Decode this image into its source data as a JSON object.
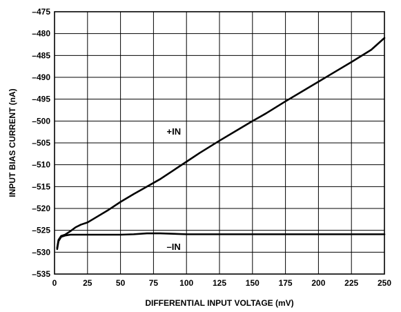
{
  "chart_data": {
    "type": "line",
    "title": "",
    "xlabel": "DIFFERENTIAL INPUT VOLTAGE (mV)",
    "ylabel": "INPUT BIAS CURRENT (nA)",
    "xlim": [
      0,
      250
    ],
    "ylim": [
      -535,
      -475
    ],
    "grid": true,
    "x_ticks": [
      0,
      25,
      50,
      75,
      100,
      125,
      150,
      175,
      200,
      225,
      250
    ],
    "x_tick_labels": [
      "0",
      "25",
      "50",
      "75",
      "100",
      "125",
      "150",
      "175",
      "200",
      "225",
      "250"
    ],
    "y_ticks": [
      -475,
      -480,
      -485,
      -490,
      -495,
      -500,
      -505,
      -510,
      -515,
      -520,
      -525,
      -530,
      -535
    ],
    "y_tick_labels": [
      "–475",
      "–480",
      "–485",
      "–490",
      "–495",
      "–500",
      "–505",
      "–510",
      "–515",
      "–520",
      "–525",
      "–530",
      "–535"
    ],
    "series": [
      {
        "name": "+IN",
        "x": [
          2,
          3,
          5,
          8,
          12,
          16,
          20,
          25,
          30,
          40,
          50,
          60,
          70,
          80,
          90,
          100,
          110,
          125,
          140,
          150,
          160,
          175,
          190,
          200,
          210,
          225,
          240,
          250
        ],
        "y": [
          -529,
          -527.2,
          -526.3,
          -526,
          -525.2,
          -524.3,
          -523.7,
          -523.2,
          -522.3,
          -520.5,
          -518.5,
          -516.7,
          -515,
          -513.3,
          -511.3,
          -509.3,
          -507.3,
          -504.5,
          -501.8,
          -500,
          -498.3,
          -495.5,
          -492.8,
          -491,
          -489.2,
          -486.5,
          -483.7,
          -481
        ]
      },
      {
        "name": "–IN",
        "x": [
          2,
          3,
          5,
          8,
          12,
          20,
          30,
          50,
          60,
          70,
          80,
          90,
          100,
          125,
          150,
          175,
          200,
          225,
          250
        ],
        "y": [
          -529.3,
          -527.5,
          -526.5,
          -526.2,
          -526,
          -526,
          -526,
          -526,
          -525.9,
          -525.7,
          -525.7,
          -525.8,
          -525.9,
          -525.9,
          -525.9,
          -525.9,
          -525.9,
          -525.9,
          -525.9
        ]
      }
    ],
    "annotations": [
      {
        "text": "+IN",
        "x": 85,
        "y": -502.3
      },
      {
        "text": "–IN",
        "x": 85,
        "y": -528.7
      }
    ]
  }
}
